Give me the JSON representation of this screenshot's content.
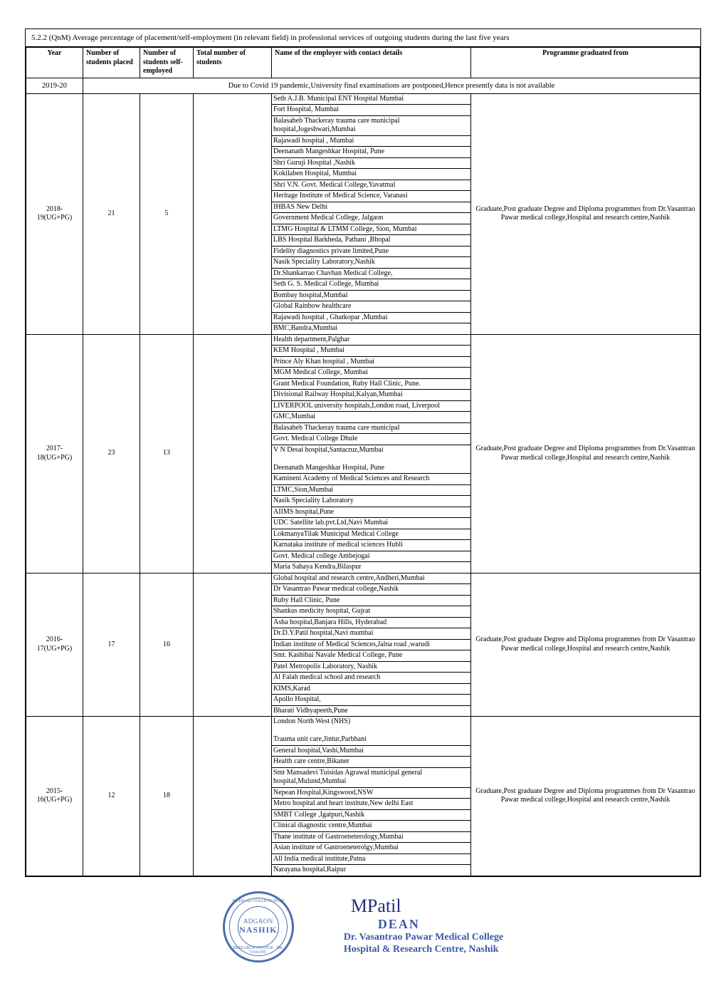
{
  "title": "5.2.2 (QnM) Average percentage of placement/self-employment (in relevant field) in professional services of outgoing students during the last five years",
  "headers": {
    "year": "Year",
    "placed": "Number of students placed",
    "self": "Number of students self- employed",
    "total": "Total number of students",
    "employer": "Name of the employer with contact details",
    "programme": "Programme graduated from"
  },
  "covid": {
    "year": "2019-20",
    "note": "Due to Covid 19 pandemic,University final examinations are postponed,Hence presently data is not available"
  },
  "rows": [
    {
      "year": "2018-19(UG+PG)",
      "placed": "21",
      "self": "5",
      "total": "",
      "programme": "Graduate,Post graduate Degree and Diploma programmes from Dr.Vasantrao Pawar medical college,Hospital and research centre,Nashik",
      "employers": [
        "Seth A.J.B. Municipal ENT Hospital Mumbai",
        "Fort Hospital, Mumbai",
        "Balasaheb Thackeray trauma care municipal hospital,Jogeshwari,Mumbai",
        "Rajawadi hospital , Mumbai",
        "Deenanath Mangeshkar Hospital, Pune",
        "Shri Guruji Hospital ,Nashik",
        "Kokilaben Hospital, Mumbai",
        "Shri V.N. Govt.  Medical College,Yavatmal",
        "Heritage Institute of Medical Science,  Varanasi",
        "IHBAS New Delhi",
        "Government Medical College, Jalgaon",
        "LTMG Hospital & LTMM College, Sion, Mumbai",
        "LBS Hospital Barkheda, Pathani ,Bhopal",
        "Fidelity diagnostics private limited,Pune",
        "Nasik Speciality Laboratory,Nashik",
        "Dr.Shankarrao Chavhan Medical College,",
        "Seth G. S. Medical College, Mumbai",
        "Bombay hospital,Mumbai",
        "Global Rainbow healthcare",
        "Rajawadi hospital , Ghatkopar ,Mumbai",
        "BMC,Bandra,Mumbai"
      ]
    },
    {
      "year": "2017-18(UG+PG)",
      "placed": "23",
      "self": "13",
      "total": "",
      "programme": "Graduate,Post graduate Degree and Diploma programmes from Dr.Vasantrao Pawar medical college,Hospital and research centre,Nashik",
      "employers": [
        "Health department,Palghar",
        "KEM Hospital , Mumbai",
        "Prince Aly Khan  hospital , Mumbai",
        "MGM Medical College, Mumbai",
        "Grant Medical Foundation, Ruby Hall Clinic, Pune.",
        "Divisional Railway Hospital,Kalyan,Mumbai",
        "LIVERPOOL university hospitals,London road, Liverpool",
        "GMC,Mumbai",
        "Balasaheb Thackeray trauma care municipal",
        "Govt. Medical College Dhule",
        "V N Desai hospital,Santacruz,Mumbai\n\nDeenanath Mangeshkar Hospital, Pune",
        "Kamineni Academy of Medical Sciences and Research",
        "LTMC,Sion,Mumbai",
        "Nasik Speciality Laboratory",
        "AIIMS hospital,Pune",
        "UDC Satellite lab.pvt.Ltd,Navi Mumbai",
        "LokmanyaTilak Municipal Medical College",
        "Karnataka institute of medical sciences Hubli",
        "Govt. Medical college Ambejogai",
        "Maria Sahaya Kendra,Bilaspur"
      ]
    },
    {
      "year": "2016-17(UG+PG)",
      "placed": "17",
      "self": "16",
      "total": "",
      "programme": "Graduate,Post graduate Degree and Diploma programmes from Dr Vasantrao Pawar medical college,Hospital and research centre,Nashik",
      "employers": [
        "Global hospital and research centre,Andheri,Mumbai",
        "Dr Vasantrao Pawar medical college,Nashik",
        "Ruby Hall Clinic, Pune",
        "Shankus medicity hospital, Gujrat",
        "Asha hospital,Banjara Hills, Hyderabad",
        "Dr.D.Y.Patil hospital,Navi mumbai",
        "Indian institute of Medical Sciences,Jalna road ,warudi",
        "Smt. Kashibai Navale Medical College, Pune",
        "Patel Metropolis Laboratory, Nashik",
        "Al Falah medical school and research",
        "KIMS,Karad",
        "Apollo Hospital,",
        "Bharati Vidhyapeeth,Pune"
      ]
    },
    {
      "year": "2015-16(UG+PG)",
      "placed": "12",
      "self": "18",
      "total": "",
      "programme": "Graduate,Post graduate Degree and Diploma programmes from Dr Vasantrao Pawar medical college,Hospital and research centre,Nashik",
      "employers": [
        "London North West (NHS)\n\nTrauma unit care,Jintur,Parbhani",
        "General hospital,Vashi,Mumbai",
        "Health care centre,Bikaner",
        "Smt Mansadevi Tuisidas Agrawal municipal general hospital,Mulund,Mumbai",
        "Nepean Hospital,Kingswood,NSW",
        "Metro hospital and heart institute,New delhi East",
        "SMBT College ,Igatpuri,Nashik",
        "Clinical diagnostic centre,Mumbai",
        "Thane institute of Gastroeneterology,Mumbai",
        "Asian institute of Gastroeneterolgy,Mumbai",
        "All India medical institute,Patna",
        "Narayana hospital,Raipur"
      ]
    }
  ],
  "footer": {
    "seal_line1": "ADGAON",
    "seal_line2": "NASHIK",
    "seal_arc_top": "MEDICAL COLLEGE HOSP",
    "seal_arc_bot": "RESEARCH CENTER · DR. VASANT",
    "signature": "MPatil",
    "dean": "DEAN",
    "inst1": "Dr. Vasantrao Pawar Medical College",
    "inst2": "Hospital & Research Centre, Nashik"
  },
  "colors": {
    "border": "#000000",
    "seal": "#4a6fb0",
    "sign": "#3959a8"
  }
}
